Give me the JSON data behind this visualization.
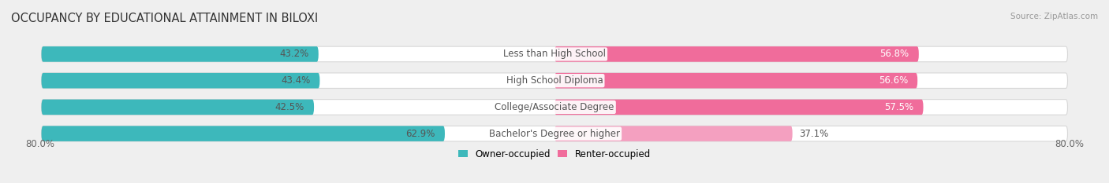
{
  "title": "OCCUPANCY BY EDUCATIONAL ATTAINMENT IN BILOXI",
  "source": "Source: ZipAtlas.com",
  "categories": [
    "Less than High School",
    "High School Diploma",
    "College/Associate Degree",
    "Bachelor's Degree or higher"
  ],
  "owner_values": [
    43.2,
    43.4,
    42.5,
    62.9
  ],
  "renter_values": [
    56.8,
    56.6,
    57.5,
    37.1
  ],
  "owner_color": "#3db8bb",
  "renter_colors": [
    "#f06c9b",
    "#f06c9b",
    "#f06c9b",
    "#f4a0c0"
  ],
  "owner_label": "Owner-occupied",
  "renter_label": "Renter-occupied",
  "total_width": 80.0,
  "x_axis_left_label": "80.0%",
  "x_axis_right_label": "80.0%",
  "background_color": "#efefef",
  "bar_track_color": "#ffffff",
  "bar_track_outline": "#d8d8d8",
  "title_fontsize": 10.5,
  "label_fontsize": 8.5,
  "axis_label_fontsize": 8.5,
  "bar_height": 0.58,
  "cat_label_color": "#555555",
  "pct_label_owner_color": "#555555",
  "pct_label_renter_white": "white",
  "pct_label_renter_dark": "#555555"
}
